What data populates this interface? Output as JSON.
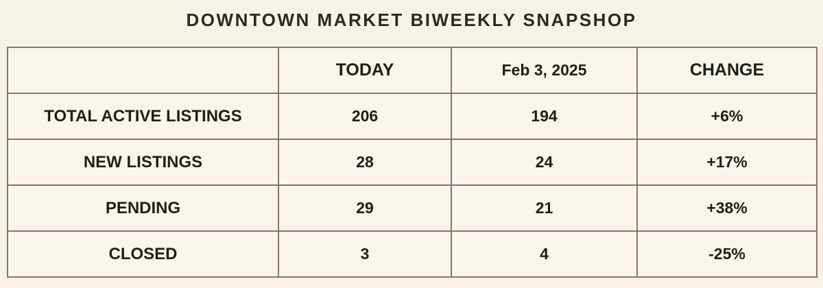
{
  "title": "DOWNTOWN MARKET BIWEEKLY SNAPSHOP",
  "colors": {
    "page_background": "#f6f2e8",
    "cell_background": "#f9f5ec",
    "corner_cell_brown": "#856a58",
    "border_brown": "#8b7463",
    "text_dark": "#1f1e1c"
  },
  "table": {
    "columns": [
      "",
      "TODAY",
      "Feb 3, 2025",
      "CHANGE"
    ],
    "rows": [
      {
        "label": "TOTAL ACTIVE LISTINGS",
        "values": [
          "206",
          "194",
          "+6%"
        ]
      },
      {
        "label": "NEW LISTINGS",
        "values": [
          "28",
          "24",
          "+17%"
        ]
      },
      {
        "label": "PENDING",
        "values": [
          "29",
          "21",
          "+38%"
        ]
      },
      {
        "label": "CLOSED",
        "values": [
          "3",
          "4",
          "-25%"
        ]
      }
    ]
  },
  "chart_data": {
    "type": "table",
    "title": "DOWNTOWN MARKET BIWEEKLY SNAPSHOP",
    "columns": [
      "",
      "TODAY",
      "Feb 3, 2025",
      "CHANGE"
    ],
    "rows": [
      [
        "TOTAL ACTIVE LISTINGS",
        206,
        194,
        "+6%"
      ],
      [
        "NEW LISTINGS",
        28,
        24,
        "+17%"
      ],
      [
        "PENDING",
        29,
        21,
        "+38%"
      ],
      [
        "CLOSED",
        3,
        4,
        "-25%"
      ]
    ],
    "notes": "Biweekly comparison table: current values vs Feb 3, 2025 with percent change; header corner cell is solid brown."
  }
}
